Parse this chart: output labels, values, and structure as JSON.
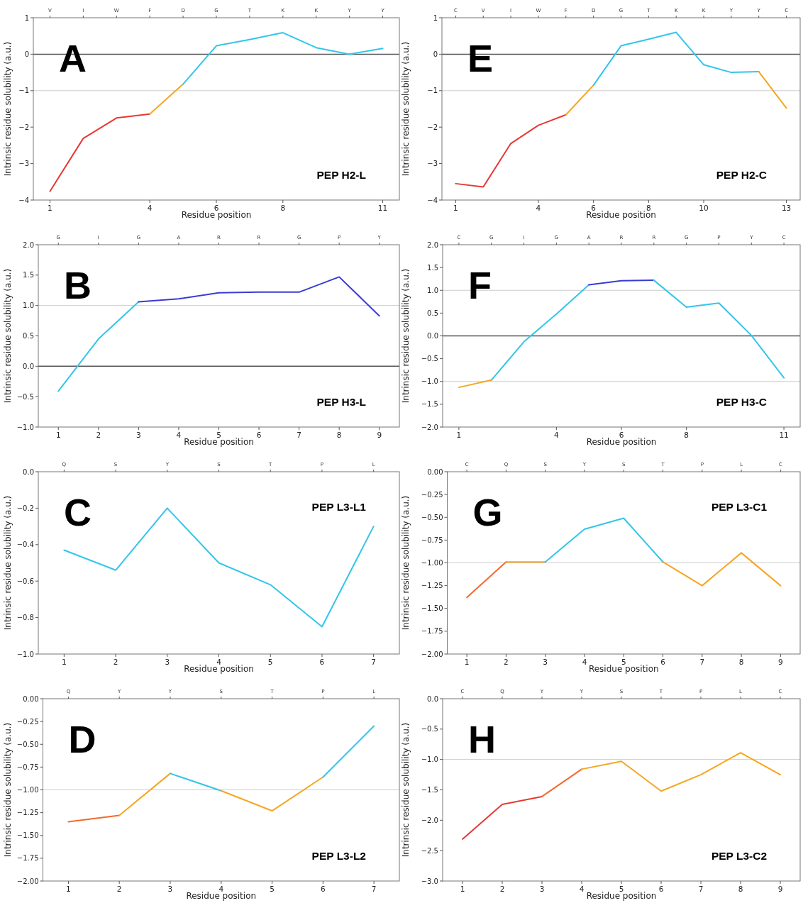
{
  "chart_data": [
    {
      "type": "line",
      "annotations": [
        "A",
        "PEP H2-L"
      ],
      "xlabel": "Residue position",
      "ylabel": "Intrinsic residue solubility (a.u.)",
      "x2lim": [
        0.5,
        11.5
      ],
      "x2ticks": [
        1,
        4,
        6,
        8,
        11
      ],
      "ylim": [
        -4,
        1
      ],
      "yticks": [
        -4,
        -3,
        -2,
        -1,
        0,
        1
      ],
      "categories": [
        "V",
        "I",
        "W",
        "F",
        "D",
        "G",
        "T",
        "K",
        "K",
        "Y",
        "Y"
      ],
      "ref_lines": [
        {
          "axis": "y",
          "value": 0,
          "color": "#555555"
        },
        {
          "axis": "y",
          "value": -1,
          "color": "#cccccc"
        }
      ],
      "series": [
        {
          "color": "#e53935",
          "values": [
            -3.76,
            -2.31,
            -1.75,
            -1.64,
            null,
            null,
            null,
            null,
            null,
            null,
            null
          ]
        },
        {
          "color": "#f5a623",
          "values": [
            null,
            null,
            null,
            -1.64,
            -0.82,
            null,
            null,
            null,
            null,
            null,
            null
          ]
        },
        {
          "color": "#33c5ea",
          "values": [
            null,
            null,
            null,
            null,
            -0.82,
            0.23,
            0.4,
            0.59,
            0.18,
            0.0,
            0.16
          ]
        }
      ]
    },
    {
      "type": "line",
      "annotations": [
        "E",
        "PEP H2-C"
      ],
      "xlabel": "Residue position",
      "ylabel": "Intrinsic residue solubility (a.u.)",
      "x2lim": [
        0.5,
        13.5
      ],
      "x2ticks": [
        1,
        4,
        6,
        8,
        10,
        13
      ],
      "ylim": [
        -4,
        1
      ],
      "yticks": [
        -4,
        -3,
        -2,
        -1,
        0,
        1
      ],
      "categories": [
        "C",
        "V",
        "I",
        "W",
        "F",
        "D",
        "G",
        "T",
        "K",
        "K",
        "Y",
        "Y",
        "C"
      ],
      "ref_lines": [
        {
          "axis": "y",
          "value": 0,
          "color": "#555555"
        },
        {
          "axis": "y",
          "value": -1,
          "color": "#cccccc"
        }
      ],
      "series": [
        {
          "color": "#e53935",
          "values": [
            -3.55,
            -3.64,
            -2.45,
            -1.95,
            -1.66,
            null,
            null,
            null,
            null,
            null,
            null,
            null,
            null
          ]
        },
        {
          "color": "#f5a623",
          "values": [
            null,
            null,
            null,
            null,
            -1.66,
            -0.85,
            null,
            null,
            null,
            null,
            null,
            null,
            null
          ]
        },
        {
          "color": "#33c5ea",
          "values": [
            null,
            null,
            null,
            null,
            null,
            -0.85,
            0.23,
            0.41,
            0.6,
            -0.29,
            -0.5,
            -0.48,
            null
          ]
        },
        {
          "color": "#f5a623",
          "values": [
            null,
            null,
            null,
            null,
            null,
            null,
            null,
            null,
            null,
            null,
            null,
            -0.48,
            -1.48
          ]
        }
      ]
    },
    {
      "type": "line",
      "annotations": [
        "B",
        "PEP H3-L"
      ],
      "xlabel": "Residue position",
      "ylabel": "Intrinsic residue solubility (a.u.)",
      "x2lim": [
        0.5,
        9.5
      ],
      "x2ticks": [
        1,
        2,
        3,
        4,
        5,
        6,
        7,
        8,
        9
      ],
      "ylim": [
        -1,
        2
      ],
      "yticks": [
        {
          "value": -1,
          "label": "−1.0"
        },
        {
          "value": -0.5,
          "label": "−0.5"
        },
        {
          "value": 0,
          "label": "0.0"
        },
        {
          "value": 0.5,
          "label": "0.5"
        },
        {
          "value": 1,
          "label": "1.0"
        },
        {
          "value": 1.5,
          "label": "1.5"
        },
        {
          "value": 2,
          "label": "2.0"
        }
      ],
      "categories": [
        "G",
        "I",
        "G",
        "A",
        "R",
        "R",
        "G",
        "P",
        "Y"
      ],
      "ref_lines": [
        {
          "axis": "y",
          "value": 0,
          "color": "#555555"
        },
        {
          "axis": "y",
          "value": 1,
          "color": "#cccccc"
        }
      ],
      "series": [
        {
          "color": "#33c5ea",
          "values": [
            -0.41,
            0.45,
            1.06,
            null,
            null,
            null,
            null,
            null,
            null
          ]
        },
        {
          "color": "#3a3ad6",
          "values": [
            null,
            null,
            1.06,
            1.11,
            1.21,
            1.22,
            1.22,
            1.47,
            0.83
          ]
        }
      ]
    },
    {
      "type": "line",
      "annotations": [
        "F",
        "PEP H3-C"
      ],
      "xlabel": "Residue position",
      "ylabel": "Intrinsic residue solubility (a.u.)",
      "x2lim": [
        0.5,
        11.5
      ],
      "x2ticks": [
        1,
        4,
        6,
        8,
        11
      ],
      "ylim": [
        -2,
        2
      ],
      "yticks": [
        {
          "value": -2,
          "label": "−2.0"
        },
        {
          "value": -1.5,
          "label": "−1.5"
        },
        {
          "value": -1,
          "label": "−1.0"
        },
        {
          "value": -0.5,
          "label": "−0.5"
        },
        {
          "value": 0,
          "label": "0.0"
        },
        {
          "value": 0.5,
          "label": "0.5"
        },
        {
          "value": 1,
          "label": "1.0"
        },
        {
          "value": 1.5,
          "label": "1.5"
        },
        {
          "value": 2,
          "label": "2.0"
        }
      ],
      "categories": [
        "C",
        "G",
        "I",
        "G",
        "A",
        "R",
        "R",
        "G",
        "P",
        "Y",
        "C"
      ],
      "ref_lines": [
        {
          "axis": "y",
          "value": 0,
          "color": "#555555"
        },
        {
          "axis": "y",
          "value": 1,
          "color": "#cccccc"
        },
        {
          "axis": "y",
          "value": -1,
          "color": "#cccccc"
        }
      ],
      "series": [
        {
          "color": "#f5a623",
          "values": [
            -1.13,
            -0.97,
            null,
            null,
            null,
            null,
            null,
            null,
            null,
            null,
            null
          ]
        },
        {
          "color": "#33c5ea",
          "values": [
            null,
            -0.97,
            -0.13,
            0.48,
            1.12,
            null,
            null,
            null,
            null,
            null,
            null
          ]
        },
        {
          "color": "#3a3ad6",
          "values": [
            null,
            null,
            null,
            null,
            1.12,
            1.21,
            1.22,
            null,
            null,
            null,
            null
          ]
        },
        {
          "color": "#33c5ea",
          "values": [
            null,
            null,
            null,
            null,
            null,
            null,
            1.22,
            0.63,
            0.72,
            0.01,
            -0.92
          ]
        }
      ]
    },
    {
      "type": "line",
      "annotations": [
        "C",
        "PEP L3-L1"
      ],
      "xlabel": "Residue position",
      "ylabel": "Intrinsic residue solubility (a.u.)",
      "x2lim": [
        0.5,
        7.5
      ],
      "x2ticks": [
        1,
        2,
        3,
        4,
        5,
        6,
        7
      ],
      "ylim": [
        -1,
        0
      ],
      "yticks": [
        {
          "value": -1,
          "label": "−1.0"
        },
        {
          "value": -0.8,
          "label": "−0.8"
        },
        {
          "value": -0.6,
          "label": "−0.6"
        },
        {
          "value": -0.4,
          "label": "−0.4"
        },
        {
          "value": -0.2,
          "label": "−0.2"
        },
        {
          "value": 0,
          "label": "0.0"
        }
      ],
      "categories": [
        "Q",
        "S",
        "Y",
        "S",
        "T",
        "P",
        "L"
      ],
      "series": [
        {
          "color": "#33c5ea",
          "values": [
            -0.43,
            -0.54,
            -0.2,
            -0.5,
            -0.62,
            -0.85,
            -0.3
          ]
        }
      ]
    },
    {
      "type": "line",
      "annotations": [
        "G",
        "PEP L3-C1"
      ],
      "xlabel": "Residue position",
      "ylabel": "Intrinsic residue solubility (a.u.)",
      "x2lim": [
        0.5,
        9.5
      ],
      "x2ticks": [
        1,
        2,
        3,
        4,
        5,
        6,
        7,
        8,
        9
      ],
      "ylim": [
        -2,
        0
      ],
      "yticks": [
        {
          "value": -2,
          "label": "−2.00"
        },
        {
          "value": -1.75,
          "label": "−1.75"
        },
        {
          "value": -1.5,
          "label": "−1.50"
        },
        {
          "value": -1.25,
          "label": "−1.25"
        },
        {
          "value": -1,
          "label": "−1.00"
        },
        {
          "value": -0.75,
          "label": "−0.75"
        },
        {
          "value": -0.5,
          "label": "−0.50"
        },
        {
          "value": -0.25,
          "label": "−0.25"
        },
        {
          "value": 0,
          "label": "0.00"
        }
      ],
      "categories": [
        "C",
        "Q",
        "S",
        "Y",
        "S",
        "T",
        "P",
        "L",
        "C"
      ],
      "ref_lines": [
        {
          "axis": "y",
          "value": -1,
          "color": "#cccccc"
        }
      ],
      "series": [
        {
          "color": "#f26a2c",
          "values": [
            -1.38,
            -0.99,
            null,
            null,
            null,
            null,
            null,
            null,
            null
          ]
        },
        {
          "color": "#f5a623",
          "values": [
            null,
            -0.99,
            -0.99,
            null,
            null,
            null,
            null,
            null,
            null
          ]
        },
        {
          "color": "#33c5ea",
          "values": [
            null,
            null,
            -0.99,
            -0.63,
            -0.51,
            -0.99,
            null,
            null,
            null
          ]
        },
        {
          "color": "#f5a623",
          "values": [
            null,
            null,
            null,
            null,
            null,
            -0.99,
            -1.25,
            -0.89,
            -1.25
          ]
        }
      ]
    },
    {
      "type": "line",
      "annotations": [
        "D",
        "PEP L3-L2"
      ],
      "xlabel": "Residue position",
      "ylabel": "Intrinsic residue solubility (a.u.)",
      "x2lim": [
        0.5,
        7.5
      ],
      "x2ticks": [
        1,
        2,
        3,
        4,
        5,
        6,
        7
      ],
      "ylim": [
        -2,
        0
      ],
      "yticks": [
        {
          "value": -2,
          "label": "−2.00"
        },
        {
          "value": -1.75,
          "label": "−1.75"
        },
        {
          "value": -1.5,
          "label": "−1.50"
        },
        {
          "value": -1.25,
          "label": "−1.25"
        },
        {
          "value": -1,
          "label": "−1.00"
        },
        {
          "value": -0.75,
          "label": "−0.75"
        },
        {
          "value": -0.5,
          "label": "−0.50"
        },
        {
          "value": -0.25,
          "label": "−0.25"
        },
        {
          "value": 0,
          "label": "0.00"
        }
      ],
      "categories": [
        "Q",
        "Y",
        "Y",
        "S",
        "T",
        "P",
        "L"
      ],
      "ref_lines": [
        {
          "axis": "y",
          "value": -1,
          "color": "#cccccc"
        }
      ],
      "series": [
        {
          "color": "#f26a2c",
          "values": [
            -1.35,
            -1.28,
            null,
            null,
            null,
            null,
            null
          ]
        },
        {
          "color": "#f5a623",
          "values": [
            null,
            -1.28,
            -0.82,
            null,
            null,
            null,
            null
          ]
        },
        {
          "color": "#33c5ea",
          "values": [
            null,
            null,
            -0.82,
            -1.01,
            null,
            null,
            null
          ]
        },
        {
          "color": "#f5a623",
          "values": [
            null,
            null,
            null,
            -1.01,
            -1.23,
            -0.86,
            null
          ]
        },
        {
          "color": "#33c5ea",
          "values": [
            null,
            null,
            null,
            null,
            null,
            -0.86,
            -0.3
          ]
        }
      ]
    },
    {
      "type": "line",
      "annotations": [
        "H",
        "PEP L3-C2"
      ],
      "xlabel": "Residue position",
      "ylabel": "Intrinsic residue solubility (a.u.)",
      "x2lim": [
        0.5,
        9.5
      ],
      "x2ticks": [
        1,
        2,
        3,
        4,
        5,
        6,
        7,
        8,
        9
      ],
      "ylim": [
        -3,
        0
      ],
      "yticks": [
        {
          "value": -3,
          "label": "−3.0"
        },
        {
          "value": -2.5,
          "label": "−2.5"
        },
        {
          "value": -2,
          "label": "−2.0"
        },
        {
          "value": -1.5,
          "label": "−1.5"
        },
        {
          "value": -1,
          "label": "−1.0"
        },
        {
          "value": -0.5,
          "label": "−0.5"
        },
        {
          "value": 0,
          "label": "0.0"
        }
      ],
      "categories": [
        "C",
        "Q",
        "Y",
        "Y",
        "S",
        "T",
        "P",
        "L",
        "C"
      ],
      "ref_lines": [
        {
          "axis": "y",
          "value": -1,
          "color": "#cccccc"
        }
      ],
      "series": [
        {
          "color": "#e53935",
          "values": [
            -2.31,
            -1.74,
            -1.61,
            null,
            null,
            null,
            null,
            null,
            null
          ]
        },
        {
          "color": "#f26a2c",
          "values": [
            null,
            null,
            -1.61,
            -1.16,
            null,
            null,
            null,
            null,
            null
          ]
        },
        {
          "color": "#f5a623",
          "values": [
            null,
            null,
            null,
            -1.16,
            -1.03,
            -1.52,
            -1.25,
            -0.89,
            -1.25
          ]
        }
      ]
    }
  ]
}
